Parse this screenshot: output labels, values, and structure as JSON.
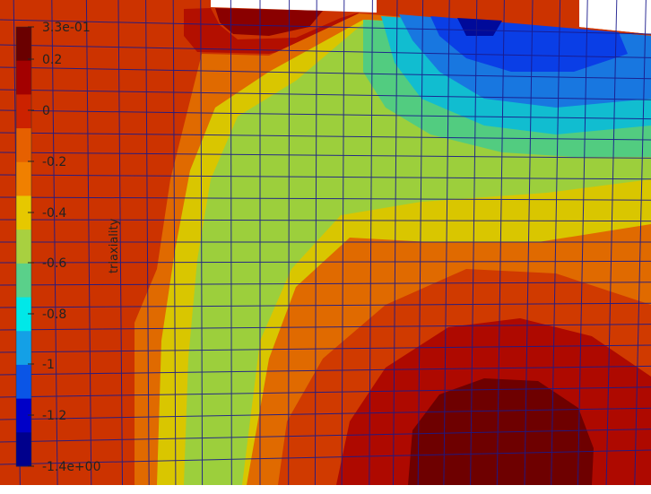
{
  "colorbar": {
    "title": "triaxiality",
    "ticks": [
      "3.3e-01",
      "0.2",
      "0",
      "-0.2",
      "-0.4",
      "-0.6",
      "-0.8",
      "-1",
      "-1.2",
      "-1.4e+00"
    ],
    "colors": [
      "#6a0000",
      "#a30000",
      "#cc2200",
      "#e66000",
      "#f08000",
      "#e6c800",
      "#a8d040",
      "#5ad08a",
      "#00e8e8",
      "#14a0e6",
      "#0a55e6",
      "#0000c8",
      "#00008c"
    ]
  },
  "field": {
    "mesh_color": "#1a1a8c",
    "background_color": "#cc3300"
  }
}
